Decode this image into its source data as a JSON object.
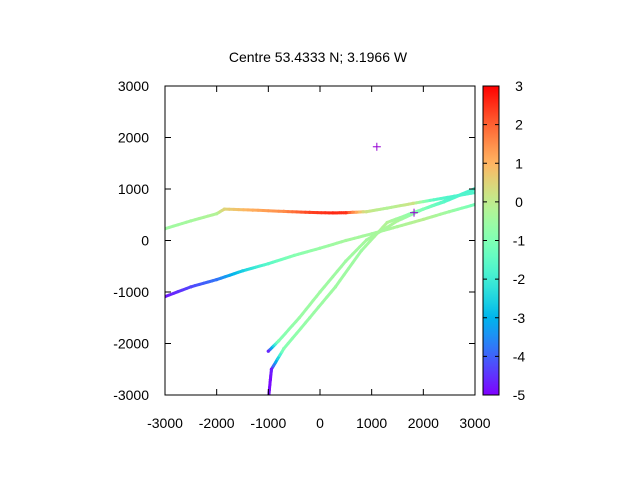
{
  "chart_data": {
    "type": "scatter",
    "title": "Centre 53.4333 N; 3.1966  W",
    "xlabel": "",
    "ylabel": "",
    "xlim": [
      -3000,
      3000
    ],
    "ylim": [
      -3000,
      3000
    ],
    "x_ticks": [
      "-3000",
      "-2000",
      "-1000",
      "0",
      "1000",
      "2000",
      "3000"
    ],
    "y_ticks": [
      "3000",
      "2000",
      "1000",
      "0",
      "-1000",
      "-2000",
      "-3000"
    ],
    "colorbar": {
      "range": [
        -5,
        3
      ],
      "ticks": [
        "3",
        "2",
        "1",
        "0",
        "-1",
        "-2",
        "-3",
        "-4",
        "-5"
      ],
      "palette": "rainbow"
    },
    "grid": false,
    "tracks": [
      {
        "points": [
          {
            "x": -3000,
            "y": 230,
            "c": -0.5
          },
          {
            "x": -2500,
            "y": 380,
            "c": -0.4
          },
          {
            "x": -2000,
            "y": 520,
            "c": -0.2
          },
          {
            "x": -1850,
            "y": 610,
            "c": 0.5
          },
          {
            "x": -1300,
            "y": 590,
            "c": 1.1
          },
          {
            "x": -700,
            "y": 565,
            "c": 1.5
          },
          {
            "x": -200,
            "y": 545,
            "c": 2.3
          },
          {
            "x": 250,
            "y": 535,
            "c": 2.6
          },
          {
            "x": 500,
            "y": 540,
            "c": 2.5
          },
          {
            "x": 900,
            "y": 560,
            "c": 0.2
          },
          {
            "x": 1300,
            "y": 630,
            "c": -0.2
          },
          {
            "x": 1800,
            "y": 720,
            "c": 0.2
          },
          {
            "x": 2200,
            "y": 790,
            "c": -1.5
          },
          {
            "x": 2600,
            "y": 860,
            "c": -1.8
          },
          {
            "x": 3000,
            "y": 930,
            "c": -1.7
          }
        ]
      },
      {
        "points": [
          {
            "x": -3000,
            "y": -1090,
            "c": -4.8
          },
          {
            "x": -2500,
            "y": -900,
            "c": -4.3
          },
          {
            "x": -2000,
            "y": -760,
            "c": -3.8
          },
          {
            "x": -1500,
            "y": -590,
            "c": -2.6
          },
          {
            "x": -1000,
            "y": -450,
            "c": -1.6
          },
          {
            "x": -500,
            "y": -290,
            "c": -0.9
          },
          {
            "x": 0,
            "y": -150,
            "c": -0.6
          },
          {
            "x": 500,
            "y": 0,
            "c": -0.4
          },
          {
            "x": 1000,
            "y": 130,
            "c": -0.4
          },
          {
            "x": 1500,
            "y": 270,
            "c": -0.3
          },
          {
            "x": 2000,
            "y": 410,
            "c": -0.1
          },
          {
            "x": 2500,
            "y": 560,
            "c": -0.5
          },
          {
            "x": 3000,
            "y": 700,
            "c": -1.2
          }
        ]
      },
      {
        "points": [
          {
            "x": -990,
            "y": -3000,
            "c": -4.9
          },
          {
            "x": -960,
            "y": -2700,
            "c": -4.9
          },
          {
            "x": -940,
            "y": -2500,
            "c": -4.7
          },
          {
            "x": -700,
            "y": -2100,
            "c": -0.9
          },
          {
            "x": -200,
            "y": -1500,
            "c": -0.6
          },
          {
            "x": 300,
            "y": -900,
            "c": -0.5
          },
          {
            "x": 800,
            "y": -200,
            "c": -0.5
          },
          {
            "x": 1300,
            "y": 350,
            "c": -0.2
          },
          {
            "x": 1800,
            "y": 540,
            "c": -0.8
          },
          {
            "x": 2400,
            "y": 750,
            "c": -1.6
          },
          {
            "x": 3000,
            "y": 1000,
            "c": -1.7
          }
        ]
      },
      {
        "points": [
          {
            "x": -1000,
            "y": -2150,
            "c": -4.6
          },
          {
            "x": -800,
            "y": -1950,
            "c": -1.0
          },
          {
            "x": -400,
            "y": -1500,
            "c": -0.6
          },
          {
            "x": 0,
            "y": -1000,
            "c": -0.5
          },
          {
            "x": 500,
            "y": -400,
            "c": -0.5
          },
          {
            "x": 900,
            "y": 10,
            "c": -0.4
          },
          {
            "x": 1500,
            "y": 380,
            "c": -0.3
          },
          {
            "x": 2000,
            "y": 610,
            "c": -1.0
          },
          {
            "x": 2500,
            "y": 800,
            "c": -1.7
          },
          {
            "x": 3000,
            "y": 1010,
            "c": -1.8
          }
        ]
      }
    ],
    "markers": [
      {
        "x": 1100,
        "y": 1820,
        "symbol": "+",
        "color": "#9400d3"
      },
      {
        "x": 1820,
        "y": 540,
        "symbol": "+",
        "color": "#9400d3"
      }
    ]
  }
}
